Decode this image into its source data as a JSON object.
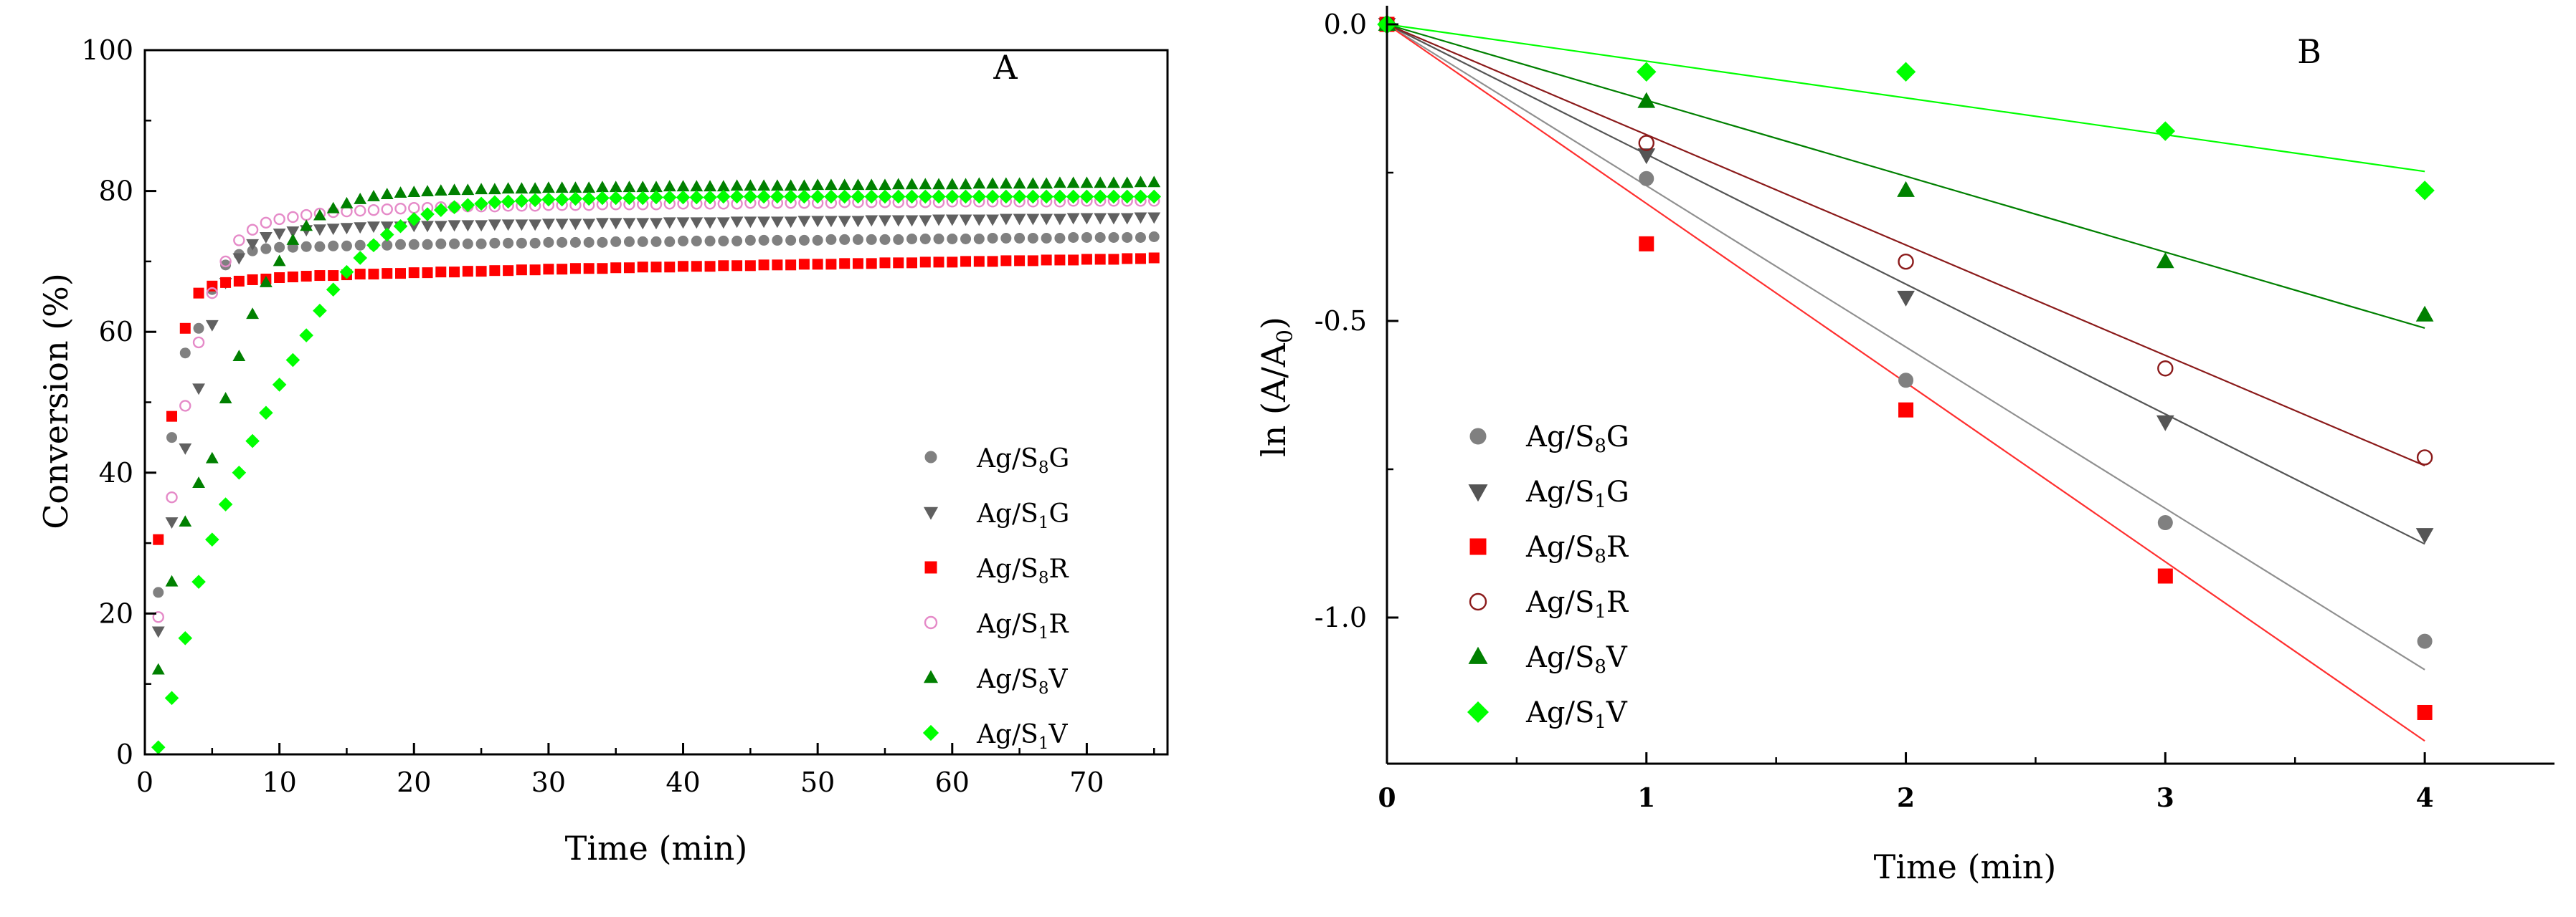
{
  "chart_data": [
    {
      "type": "scatter",
      "panel_label": "A",
      "xlabel": "Time (min)",
      "ylabel": "Conversion (%)",
      "xlim": [
        0,
        76
      ],
      "ylim": [
        0,
        100
      ],
      "xticks": [
        0,
        10,
        20,
        30,
        40,
        50,
        60,
        70
      ],
      "yticks": [
        0,
        20,
        40,
        60,
        80,
        100
      ],
      "legend_position": "lower-right",
      "series": [
        {
          "name": "Ag/S8G",
          "label": [
            "Ag/S",
            "8",
            "G"
          ],
          "color": "#808080",
          "marker": "circle",
          "fill": true,
          "plateau": 73
        },
        {
          "name": "Ag/S1G",
          "label": [
            "Ag/S",
            "1",
            "G"
          ],
          "color": "#606060",
          "marker": "triangle-down",
          "fill": true,
          "plateau": 76
        },
        {
          "name": "Ag/S8R",
          "label": [
            "Ag/S",
            "8",
            "R"
          ],
          "color": "#ff0000",
          "marker": "square",
          "fill": true,
          "plateau": 70
        },
        {
          "name": "Ag/S1R",
          "label": [
            "Ag/S",
            "1",
            "R"
          ],
          "color": "#e58ac8",
          "marker": "circle",
          "fill": false,
          "plateau": 78
        },
        {
          "name": "Ag/S8V",
          "label": [
            "Ag/S",
            "8",
            "V"
          ],
          "color": "#008000",
          "marker": "triangle-up",
          "fill": true,
          "plateau": 81
        },
        {
          "name": "Ag/S1V",
          "label": [
            "Ag/S",
            "1",
            "V"
          ],
          "color": "#00ff00",
          "marker": "diamond",
          "fill": true,
          "plateau": 79
        }
      ],
      "x": [
        1,
        2,
        3,
        4,
        5,
        6,
        7,
        8,
        9,
        10,
        11,
        12,
        13,
        14,
        15,
        16,
        17,
        18,
        19,
        20,
        21,
        22,
        23,
        24,
        25,
        26,
        27,
        28,
        29,
        30,
        31,
        32,
        33,
        34,
        35,
        36,
        37,
        38,
        39,
        40,
        41,
        42,
        43,
        44,
        45,
        46,
        47,
        48,
        49,
        50,
        51,
        52,
        53,
        54,
        55,
        56,
        57,
        58,
        59,
        60,
        61,
        62,
        63,
        64,
        65,
        66,
        67,
        68,
        69,
        70,
        71,
        72,
        73,
        74,
        75
      ],
      "values": {
        "Ag/S8G": [
          23.0,
          45.0,
          57.0,
          60.5,
          66.0,
          69.5,
          71.0,
          71.5,
          71.8,
          72.0,
          72.0,
          72.1,
          72.1,
          72.2,
          72.2,
          72.3,
          72.3,
          72.3,
          72.4,
          72.4,
          72.4,
          72.5,
          72.5,
          72.5,
          72.5,
          72.6,
          72.6,
          72.6,
          72.6,
          72.7,
          72.7,
          72.7,
          72.7,
          72.7,
          72.8,
          72.8,
          72.8,
          72.8,
          72.8,
          72.9,
          72.9,
          72.9,
          72.9,
          72.9,
          73.0,
          73.0,
          73.0,
          73.0,
          73.0,
          73.0,
          73.1,
          73.1,
          73.1,
          73.1,
          73.1,
          73.1,
          73.2,
          73.2,
          73.2,
          73.2,
          73.2,
          73.2,
          73.3,
          73.3,
          73.3,
          73.3,
          73.3,
          73.3,
          73.4,
          73.4,
          73.4,
          73.4,
          73.4,
          73.4,
          73.5
        ],
        "Ag/S1G": [
          17.5,
          33.0,
          43.5,
          52.0,
          61.0,
          67.0,
          70.5,
          72.5,
          73.5,
          74.0,
          74.3,
          74.5,
          74.6,
          74.7,
          74.8,
          74.9,
          75.0,
          75.0,
          75.0,
          75.1,
          75.1,
          75.1,
          75.2,
          75.2,
          75.2,
          75.3,
          75.3,
          75.3,
          75.3,
          75.4,
          75.4,
          75.4,
          75.4,
          75.5,
          75.5,
          75.5,
          75.5,
          75.5,
          75.6,
          75.6,
          75.6,
          75.6,
          75.6,
          75.7,
          75.7,
          75.7,
          75.7,
          75.7,
          75.8,
          75.8,
          75.8,
          75.8,
          75.8,
          75.9,
          75.9,
          75.9,
          75.9,
          75.9,
          76.0,
          76.0,
          76.0,
          76.0,
          76.0,
          76.1,
          76.1,
          76.1,
          76.1,
          76.1,
          76.2,
          76.2,
          76.2,
          76.2,
          76.2,
          76.3,
          76.3
        ],
        "Ag/S8R": [
          30.5,
          48.0,
          60.5,
          65.5,
          66.5,
          67.0,
          67.2,
          67.4,
          67.5,
          67.7,
          67.8,
          67.9,
          68.0,
          68.0,
          68.1,
          68.2,
          68.2,
          68.3,
          68.3,
          68.4,
          68.4,
          68.5,
          68.5,
          68.6,
          68.6,
          68.7,
          68.7,
          68.8,
          68.8,
          68.9,
          68.9,
          69.0,
          69.0,
          69.0,
          69.1,
          69.1,
          69.2,
          69.2,
          69.2,
          69.3,
          69.3,
          69.3,
          69.4,
          69.4,
          69.4,
          69.5,
          69.5,
          69.5,
          69.6,
          69.6,
          69.6,
          69.7,
          69.7,
          69.7,
          69.8,
          69.8,
          69.8,
          69.9,
          69.9,
          69.9,
          70.0,
          70.0,
          70.0,
          70.1,
          70.1,
          70.1,
          70.2,
          70.2,
          70.2,
          70.3,
          70.3,
          70.3,
          70.4,
          70.4,
          70.5
        ],
        "Ag/S1R": [
          19.5,
          36.5,
          49.5,
          58.5,
          65.5,
          70.0,
          73.0,
          74.5,
          75.5,
          76.0,
          76.3,
          76.6,
          76.8,
          77.0,
          77.1,
          77.2,
          77.3,
          77.4,
          77.5,
          77.6,
          77.6,
          77.7,
          77.7,
          77.8,
          77.8,
          77.8,
          77.9,
          77.9,
          77.9,
          78.0,
          78.0,
          78.0,
          78.0,
          78.1,
          78.1,
          78.1,
          78.1,
          78.1,
          78.2,
          78.2,
          78.2,
          78.2,
          78.2,
          78.2,
          78.3,
          78.3,
          78.3,
          78.3,
          78.3,
          78.3,
          78.3,
          78.4,
          78.4,
          78.4,
          78.4,
          78.4,
          78.4,
          78.4,
          78.4,
          78.5,
          78.5,
          78.5,
          78.5,
          78.5,
          78.5,
          78.5,
          78.5,
          78.5,
          78.6,
          78.6,
          78.6,
          78.6,
          78.6,
          78.6,
          78.6
        ],
        "Ag/S8V": [
          12.0,
          24.5,
          33.0,
          38.5,
          42.0,
          50.5,
          56.5,
          62.5,
          67.0,
          70.0,
          73.0,
          75.0,
          76.5,
          77.5,
          78.2,
          78.8,
          79.2,
          79.5,
          79.7,
          79.8,
          79.9,
          80.0,
          80.1,
          80.1,
          80.2,
          80.2,
          80.3,
          80.3,
          80.3,
          80.4,
          80.4,
          80.4,
          80.4,
          80.5,
          80.5,
          80.5,
          80.5,
          80.5,
          80.6,
          80.6,
          80.6,
          80.6,
          80.6,
          80.7,
          80.7,
          80.7,
          80.7,
          80.7,
          80.7,
          80.8,
          80.8,
          80.8,
          80.8,
          80.8,
          80.8,
          80.9,
          80.9,
          80.9,
          80.9,
          80.9,
          80.9,
          81.0,
          81.0,
          81.0,
          81.0,
          81.0,
          81.0,
          81.1,
          81.1,
          81.1,
          81.1,
          81.1,
          81.1,
          81.2,
          81.2
        ],
        "Ag/S1V": [
          1.0,
          8.0,
          16.5,
          24.5,
          30.5,
          35.5,
          40.0,
          44.5,
          48.5,
          52.5,
          56.0,
          59.5,
          63.0,
          66.0,
          68.5,
          70.5,
          72.3,
          73.8,
          75.0,
          76.0,
          76.7,
          77.3,
          77.7,
          78.0,
          78.2,
          78.4,
          78.5,
          78.6,
          78.7,
          78.8,
          78.8,
          78.9,
          78.9,
          79.0,
          79.0,
          79.0,
          79.0,
          79.1,
          79.1,
          79.1,
          79.1,
          79.1,
          79.2,
          79.2,
          79.2,
          79.2,
          79.2,
          79.2,
          79.2,
          79.2,
          79.2,
          79.2,
          79.2,
          79.2,
          79.2,
          79.2,
          79.2,
          79.2,
          79.2,
          79.2,
          79.2,
          79.2,
          79.2,
          79.2,
          79.2,
          79.2,
          79.2,
          79.2,
          79.2,
          79.2,
          79.2,
          79.2,
          79.2,
          79.2,
          79.2
        ]
      }
    },
    {
      "type": "scatter",
      "panel_label": "B",
      "xlabel": "Time (min)",
      "ylabel": [
        "ln (A/A",
        "0",
        ")"
      ],
      "xlim": [
        0,
        4.5
      ],
      "ylim": [
        -1.2,
        0.05
      ],
      "xticks": [
        0,
        1,
        2,
        3,
        4
      ],
      "yticks": [
        0.0,
        -0.5,
        -1.0
      ],
      "ytick_labels": [
        "0.0",
        "-0.5",
        "-1.0"
      ],
      "legend_position": "lower-left",
      "x": [
        0,
        1,
        2,
        3,
        4
      ],
      "series": [
        {
          "name": "Ag/S8G",
          "label": [
            "Ag/S",
            "8",
            "G"
          ],
          "color": "#808080",
          "marker": "circle",
          "fill": true,
          "values": [
            0.0,
            -0.26,
            -0.6,
            -0.84,
            -1.04
          ],
          "fit_slope": -0.272,
          "fit_color": "#909090"
        },
        {
          "name": "Ag/S1G",
          "label": [
            "Ag/S",
            "1",
            "G"
          ],
          "color": "#555555",
          "marker": "triangle-down",
          "fill": true,
          "values": [
            0.0,
            -0.22,
            -0.46,
            -0.67,
            -0.86
          ],
          "fit_slope": -0.219,
          "fit_color": "#555555"
        },
        {
          "name": "Ag/S8R",
          "label": [
            "Ag/S",
            "8",
            "R"
          ],
          "color": "#ff0000",
          "marker": "square",
          "fill": true,
          "values": [
            0.0,
            -0.37,
            -0.65,
            -0.93,
            -1.16
          ],
          "fit_slope": -0.302,
          "fit_color": "#ff3030"
        },
        {
          "name": "Ag/S1R",
          "label": [
            "Ag/S",
            "1",
            "R"
          ],
          "color": "#8b1a1a",
          "marker": "circle",
          "fill": false,
          "values": [
            0.0,
            -0.2,
            -0.4,
            -0.58,
            -0.73
          ],
          "fit_slope": -0.186,
          "fit_color": "#8b1a1a"
        },
        {
          "name": "Ag/S8V",
          "label": [
            "Ag/S",
            "8",
            "V"
          ],
          "color": "#008000",
          "marker": "triangle-up",
          "fill": true,
          "values": [
            0.0,
            -0.13,
            -0.28,
            -0.4,
            -0.49
          ],
          "fit_slope": -0.128,
          "fit_color": "#008000"
        },
        {
          "name": "Ag/S1V",
          "label": [
            "Ag/S",
            "1",
            "V"
          ],
          "color": "#00ff00",
          "marker": "diamond",
          "fill": true,
          "values": [
            0.0,
            -0.08,
            -0.08,
            -0.18,
            -0.28
          ],
          "fit_slope": -0.062,
          "fit_color": "#00ff00"
        }
      ]
    }
  ]
}
